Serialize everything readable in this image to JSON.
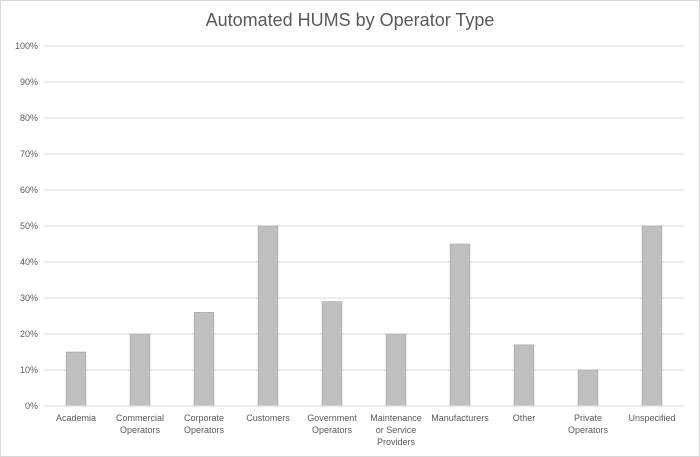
{
  "chart_data": {
    "type": "bar",
    "title": "Automated HUMS by Operator Type",
    "xlabel": "",
    "ylabel": "",
    "categories": [
      [
        "Academia"
      ],
      [
        "Commercial",
        "Operators"
      ],
      [
        "Corporate",
        "Operators"
      ],
      [
        "Customers"
      ],
      [
        "Government",
        "Operators"
      ],
      [
        "Maintenance",
        "or Service",
        "Providers"
      ],
      [
        "Manufacturers"
      ],
      [
        "Other"
      ],
      [
        "Private",
        "Operators"
      ],
      [
        "Unspecified"
      ]
    ],
    "values": [
      0.15,
      0.2,
      0.26,
      0.5,
      0.29,
      0.2,
      0.45,
      0.17,
      0.1,
      0.5
    ],
    "ylim": [
      0,
      1
    ],
    "yticks": [
      "0%",
      "10%",
      "20%",
      "30%",
      "40%",
      "50%",
      "60%",
      "70%",
      "80%",
      "90%",
      "100%"
    ],
    "grid": true,
    "colors": {
      "bar": "#bfbfbf",
      "bar_edge": "#a6a6a6",
      "grid": "#d9d9d9",
      "text": "#595959"
    }
  }
}
